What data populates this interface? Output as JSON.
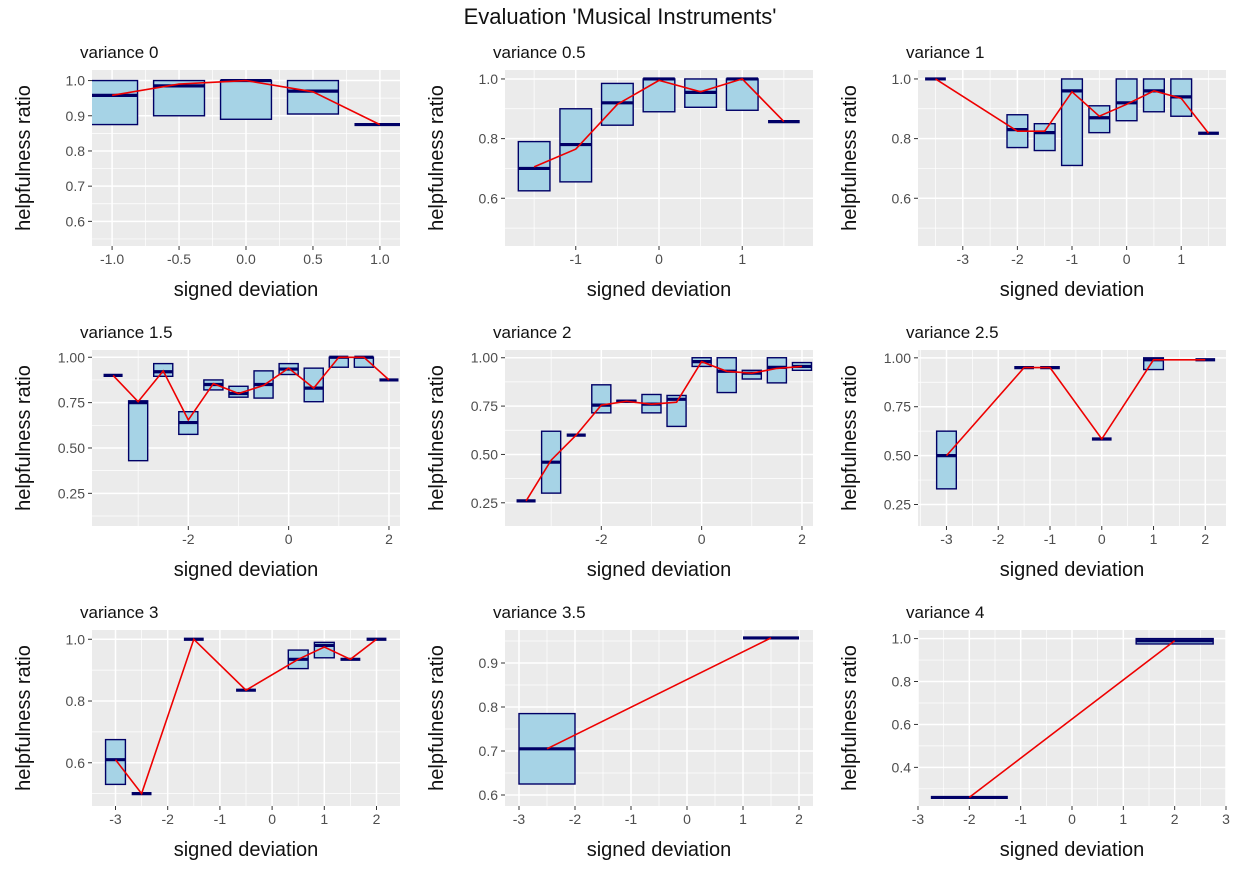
{
  "title": "Evaluation 'Musical Instruments'",
  "colors": {
    "panel_bg": "#ebebeb",
    "grid": "#ffffff",
    "box_fill": "#a6d3e6",
    "box_stroke": "#000066",
    "line": "#ee0000"
  },
  "chart_data": [
    {
      "type": "boxplot+line",
      "title": "variance 0",
      "xlabel": "signed deviation",
      "ylabel": "helpfulness ratio",
      "xlim": [
        -1.15,
        1.15
      ],
      "ylim": [
        0.53,
        1.03
      ],
      "xticks": [
        -1.0,
        -0.5,
        0.0,
        0.5,
        1.0
      ],
      "xticklabels": [
        "-1.0",
        "-0.5",
        "0.0",
        "0.5",
        "1.0"
      ],
      "yticks": [
        0.6,
        0.7,
        0.8,
        0.9,
        1.0
      ],
      "yticklabels": [
        "0.6",
        "0.7",
        "0.8",
        "0.9",
        "1.0"
      ],
      "box_width": 0.38,
      "boxes": [
        {
          "x": -1.0,
          "q1": 0.875,
          "median": 0.958,
          "q3": 1.0
        },
        {
          "x": -0.5,
          "q1": 0.9,
          "median": 0.985,
          "q3": 1.0
        },
        {
          "x": 0.0,
          "q1": 0.89,
          "median": 1.0,
          "q3": 1.0
        },
        {
          "x": 0.5,
          "q1": 0.905,
          "median": 0.97,
          "q3": 1.0
        },
        {
          "x": 1.0,
          "q1": 0.875,
          "median": 0.875,
          "q3": 0.875
        }
      ],
      "line": [
        [
          -1.0,
          0.958
        ],
        [
          -0.5,
          0.99
        ],
        [
          0.0,
          1.0
        ],
        [
          0.5,
          0.968
        ],
        [
          1.0,
          0.875
        ]
      ]
    },
    {
      "type": "boxplot+line",
      "title": "variance 0.5",
      "xlabel": "signed deviation",
      "ylabel": "helpfulness ratio",
      "xlim": [
        -1.85,
        1.85
      ],
      "ylim": [
        0.44,
        1.03
      ],
      "xticks": [
        -1,
        0,
        1
      ],
      "xticklabels": [
        "-1",
        "0",
        "1"
      ],
      "yticks": [
        0.6,
        0.8,
        1.0
      ],
      "yticklabels": [
        "0.6",
        "0.8",
        "1.0"
      ],
      "box_width": 0.38,
      "boxes": [
        {
          "x": -1.5,
          "q1": 0.625,
          "median": 0.7,
          "q3": 0.79
        },
        {
          "x": -1.0,
          "q1": 0.655,
          "median": 0.78,
          "q3": 0.9
        },
        {
          "x": -0.5,
          "q1": 0.845,
          "median": 0.92,
          "q3": 0.985
        },
        {
          "x": 0.0,
          "q1": 0.89,
          "median": 1.0,
          "q3": 1.0
        },
        {
          "x": 0.5,
          "q1": 0.905,
          "median": 0.955,
          "q3": 1.0
        },
        {
          "x": 1.0,
          "q1": 0.895,
          "median": 1.0,
          "q3": 1.0
        },
        {
          "x": 1.5,
          "q1": 0.857,
          "median": 0.857,
          "q3": 0.857
        }
      ],
      "line": [
        [
          -1.5,
          0.705
        ],
        [
          -1.0,
          0.765
        ],
        [
          -0.5,
          0.915
        ],
        [
          0.0,
          0.995
        ],
        [
          0.5,
          0.957
        ],
        [
          1.0,
          1.0
        ],
        [
          1.5,
          0.857
        ]
      ]
    },
    {
      "type": "boxplot+line",
      "title": "variance 1",
      "xlabel": "signed deviation",
      "ylabel": "helpfulness ratio",
      "xlim": [
        -3.82,
        1.82
      ],
      "ylim": [
        0.44,
        1.03
      ],
      "xticks": [
        -3,
        -2,
        -1,
        0,
        1
      ],
      "xticklabels": [
        "-3",
        "-2",
        "-1",
        "0",
        "1"
      ],
      "yticks": [
        0.6,
        0.8,
        1.0
      ],
      "yticklabels": [
        "0.6",
        "0.8",
        "1.0"
      ],
      "box_width": 0.38,
      "boxes": [
        {
          "x": -3.5,
          "q1": 1.0,
          "median": 1.0,
          "q3": 1.0
        },
        {
          "x": -2.0,
          "q1": 0.77,
          "median": 0.83,
          "q3": 0.88
        },
        {
          "x": -1.5,
          "q1": 0.76,
          "median": 0.82,
          "q3": 0.85
        },
        {
          "x": -1.0,
          "q1": 0.71,
          "median": 0.96,
          "q3": 1.0
        },
        {
          "x": -0.5,
          "q1": 0.82,
          "median": 0.87,
          "q3": 0.91
        },
        {
          "x": 0.0,
          "q1": 0.86,
          "median": 0.92,
          "q3": 1.0
        },
        {
          "x": 0.5,
          "q1": 0.89,
          "median": 0.96,
          "q3": 1.0
        },
        {
          "x": 1.0,
          "q1": 0.875,
          "median": 0.94,
          "q3": 1.0
        },
        {
          "x": 1.5,
          "q1": 0.818,
          "median": 0.818,
          "q3": 0.818
        }
      ],
      "line": [
        [
          -3.5,
          1.0
        ],
        [
          -2.0,
          0.825
        ],
        [
          -1.5,
          0.825
        ],
        [
          -1.0,
          0.957
        ],
        [
          -0.5,
          0.875
        ],
        [
          0.0,
          0.915
        ],
        [
          0.5,
          0.96
        ],
        [
          1.0,
          0.935
        ],
        [
          1.5,
          0.818
        ]
      ]
    },
    {
      "type": "boxplot+line",
      "title": "variance 1.5",
      "xlabel": "signed deviation",
      "ylabel": "helpfulness ratio",
      "xlim": [
        -3.92,
        2.22
      ],
      "ylim": [
        0.07,
        1.04
      ],
      "xticks": [
        -2,
        0,
        2
      ],
      "xticklabels": [
        "-2",
        "0",
        "2"
      ],
      "yticks": [
        0.25,
        0.5,
        0.75,
        1.0
      ],
      "yticklabels": [
        "0.25",
        "0.50",
        "0.75",
        "1.00"
      ],
      "box_width": 0.38,
      "boxes": [
        {
          "x": -3.5,
          "q1": 0.9,
          "median": 0.9,
          "q3": 0.9
        },
        {
          "x": -3.0,
          "q1": 0.43,
          "median": 0.75,
          "q3": 0.76
        },
        {
          "x": -2.5,
          "q1": 0.895,
          "median": 0.92,
          "q3": 0.965
        },
        {
          "x": -2.0,
          "q1": 0.575,
          "median": 0.64,
          "q3": 0.7
        },
        {
          "x": -1.5,
          "q1": 0.82,
          "median": 0.85,
          "q3": 0.875
        },
        {
          "x": -1.0,
          "q1": 0.78,
          "median": 0.8,
          "q3": 0.84
        },
        {
          "x": -0.5,
          "q1": 0.775,
          "median": 0.85,
          "q3": 0.925
        },
        {
          "x": 0.0,
          "q1": 0.905,
          "median": 0.935,
          "q3": 0.965
        },
        {
          "x": 0.5,
          "q1": 0.755,
          "median": 0.83,
          "q3": 0.94
        },
        {
          "x": 1.0,
          "q1": 0.945,
          "median": 1.0,
          "q3": 1.0
        },
        {
          "x": 1.5,
          "q1": 0.945,
          "median": 1.0,
          "q3": 1.0
        },
        {
          "x": 2.0,
          "q1": 0.875,
          "median": 0.875,
          "q3": 0.875
        }
      ],
      "line": [
        [
          -3.5,
          0.9
        ],
        [
          -3.0,
          0.755
        ],
        [
          -2.5,
          0.925
        ],
        [
          -2.0,
          0.655
        ],
        [
          -1.5,
          0.855
        ],
        [
          -1.0,
          0.8
        ],
        [
          -0.5,
          0.845
        ],
        [
          0.0,
          0.94
        ],
        [
          0.5,
          0.83
        ],
        [
          1.0,
          1.0
        ],
        [
          1.5,
          1.0
        ],
        [
          2.0,
          0.875
        ]
      ]
    },
    {
      "type": "boxplot+line",
      "title": "variance 2",
      "xlabel": "signed deviation",
      "ylabel": "helpfulness ratio",
      "xlim": [
        -3.92,
        2.22
      ],
      "ylim": [
        0.13,
        1.04
      ],
      "xticks": [
        -2,
        0,
        2
      ],
      "xticklabels": [
        "-2",
        "0",
        "2"
      ],
      "yticks": [
        0.25,
        0.5,
        0.75,
        1.0
      ],
      "yticklabels": [
        "0.25",
        "0.50",
        "0.75",
        "1.00"
      ],
      "box_width": 0.38,
      "boxes": [
        {
          "x": -3.5,
          "q1": 0.26,
          "median": 0.26,
          "q3": 0.26
        },
        {
          "x": -3.0,
          "q1": 0.3,
          "median": 0.46,
          "q3": 0.62
        },
        {
          "x": -2.5,
          "q1": 0.6,
          "median": 0.6,
          "q3": 0.6
        },
        {
          "x": -2.0,
          "q1": 0.715,
          "median": 0.755,
          "q3": 0.86
        },
        {
          "x": -1.5,
          "q1": 0.77,
          "median": 0.775,
          "q3": 0.78
        },
        {
          "x": -1.0,
          "q1": 0.715,
          "median": 0.76,
          "q3": 0.81
        },
        {
          "x": -0.5,
          "q1": 0.645,
          "median": 0.785,
          "q3": 0.805
        },
        {
          "x": 0.0,
          "q1": 0.955,
          "median": 0.98,
          "q3": 1.0
        },
        {
          "x": 0.5,
          "q1": 0.82,
          "median": 0.93,
          "q3": 1.0
        },
        {
          "x": 1.0,
          "q1": 0.89,
          "median": 0.92,
          "q3": 0.935
        },
        {
          "x": 1.5,
          "q1": 0.87,
          "median": 0.95,
          "q3": 1.0
        },
        {
          "x": 2.0,
          "q1": 0.935,
          "median": 0.955,
          "q3": 0.975
        }
      ],
      "line": [
        [
          -3.5,
          0.26
        ],
        [
          -3.0,
          0.47
        ],
        [
          -2.5,
          0.6
        ],
        [
          -2.0,
          0.755
        ],
        [
          -1.5,
          0.775
        ],
        [
          -1.0,
          0.76
        ],
        [
          -0.5,
          0.77
        ],
        [
          0.0,
          0.98
        ],
        [
          0.5,
          0.93
        ],
        [
          1.0,
          0.92
        ],
        [
          1.5,
          0.945
        ],
        [
          2.0,
          0.955
        ]
      ]
    },
    {
      "type": "boxplot+line",
      "title": "variance 2.5",
      "xlabel": "signed deviation",
      "ylabel": "helpfulness ratio",
      "xlim": [
        -3.55,
        2.4
      ],
      "ylim": [
        0.14,
        1.04
      ],
      "xticks": [
        -3,
        -2,
        -1,
        0,
        1,
        2
      ],
      "xticklabels": [
        "-3",
        "-2",
        "-1",
        "0",
        "1",
        "2"
      ],
      "yticks": [
        0.25,
        0.5,
        0.75,
        1.0
      ],
      "yticklabels": [
        "0.25",
        "0.50",
        "0.75",
        "1.00"
      ],
      "box_width": 0.38,
      "boxes": [
        {
          "x": -3.0,
          "q1": 0.33,
          "median": 0.5,
          "q3": 0.625
        },
        {
          "x": -1.5,
          "q1": 0.95,
          "median": 0.95,
          "q3": 0.95
        },
        {
          "x": -1.0,
          "q1": 0.95,
          "median": 0.95,
          "q3": 0.95
        },
        {
          "x": 0.0,
          "q1": 0.585,
          "median": 0.585,
          "q3": 0.585
        },
        {
          "x": 1.0,
          "q1": 0.94,
          "median": 0.99,
          "q3": 1.0
        },
        {
          "x": 2.0,
          "q1": 0.99,
          "median": 0.99,
          "q3": 0.99
        }
      ],
      "line": [
        [
          -3.0,
          0.5
        ],
        [
          -1.5,
          0.95
        ],
        [
          -1.0,
          0.95
        ],
        [
          0.0,
          0.585
        ],
        [
          1.0,
          0.99
        ],
        [
          2.0,
          0.99
        ]
      ]
    },
    {
      "type": "boxplot+line",
      "title": "variance 3",
      "xlabel": "signed deviation",
      "ylabel": "helpfulness ratio",
      "xlim": [
        -3.45,
        2.45
      ],
      "ylim": [
        0.46,
        1.03
      ],
      "xticks": [
        -3,
        -2,
        -1,
        0,
        1,
        2
      ],
      "xticklabels": [
        "-3",
        "-2",
        "-1",
        "0",
        "1",
        "2"
      ],
      "yticks": [
        0.6,
        0.8,
        1.0
      ],
      "yticklabels": [
        "0.6",
        "0.8",
        "1.0"
      ],
      "box_width": 0.38,
      "boxes": [
        {
          "x": -3.0,
          "q1": 0.53,
          "median": 0.61,
          "q3": 0.675
        },
        {
          "x": -2.5,
          "q1": 0.5,
          "median": 0.5,
          "q3": 0.5
        },
        {
          "x": -1.5,
          "q1": 1.0,
          "median": 1.0,
          "q3": 1.0
        },
        {
          "x": -0.5,
          "q1": 0.835,
          "median": 0.835,
          "q3": 0.835
        },
        {
          "x": 0.5,
          "q1": 0.905,
          "median": 0.935,
          "q3": 0.965
        },
        {
          "x": 1.0,
          "q1": 0.94,
          "median": 0.98,
          "q3": 0.99
        },
        {
          "x": 1.5,
          "q1": 0.935,
          "median": 0.935,
          "q3": 0.935
        },
        {
          "x": 2.0,
          "q1": 1.0,
          "median": 1.0,
          "q3": 1.0
        }
      ],
      "line": [
        [
          -3.0,
          0.61
        ],
        [
          -2.5,
          0.5
        ],
        [
          -1.5,
          1.0
        ],
        [
          -0.5,
          0.835
        ],
        [
          0.5,
          0.935
        ],
        [
          1.0,
          0.975
        ],
        [
          1.5,
          0.935
        ],
        [
          2.0,
          1.0
        ]
      ]
    },
    {
      "type": "boxplot+line",
      "title": "variance 3.5",
      "xlabel": "signed deviation",
      "ylabel": "helpfulness ratio",
      "xlim": [
        -3.25,
        2.25
      ],
      "ylim": [
        0.575,
        0.975
      ],
      "xticks": [
        -3,
        -2,
        -1,
        0,
        1,
        2
      ],
      "xticklabels": [
        "-3",
        "-2",
        "-1",
        "0",
        "1",
        "2"
      ],
      "yticks": [
        0.6,
        0.7,
        0.8,
        0.9
      ],
      "yticklabels": [
        "0.6",
        "0.7",
        "0.8",
        "0.9"
      ],
      "box_width": 1.0,
      "boxes": [
        {
          "x": -2.5,
          "q1": 0.625,
          "median": 0.705,
          "q3": 0.785
        },
        {
          "x": 1.5,
          "q1": 0.957,
          "median": 0.957,
          "q3": 0.957
        }
      ],
      "line": [
        [
          -2.5,
          0.705
        ],
        [
          1.5,
          0.957
        ]
      ]
    },
    {
      "type": "boxplot+line",
      "title": "variance 4",
      "xlabel": "signed deviation",
      "ylabel": "helpfulness ratio",
      "xlim": [
        -3.0,
        3.0
      ],
      "ylim": [
        0.22,
        1.04
      ],
      "xticks": [
        -3,
        -2,
        -1,
        0,
        1,
        2,
        3
      ],
      "xticklabels": [
        "-3",
        "-2",
        "-1",
        "0",
        "1",
        "2",
        "3"
      ],
      "yticks": [
        0.4,
        0.6,
        0.8,
        1.0
      ],
      "yticklabels": [
        "0.4",
        "0.6",
        "0.8",
        "1.0"
      ],
      "box_width": 1.5,
      "boxes": [
        {
          "x": -2.0,
          "q1": 0.26,
          "median": 0.26,
          "q3": 0.26
        },
        {
          "x": 2.0,
          "q1": 0.975,
          "median": 0.99,
          "q3": 1.0
        }
      ],
      "line": [
        [
          -2.0,
          0.26
        ],
        [
          2.0,
          0.99
        ]
      ]
    }
  ]
}
